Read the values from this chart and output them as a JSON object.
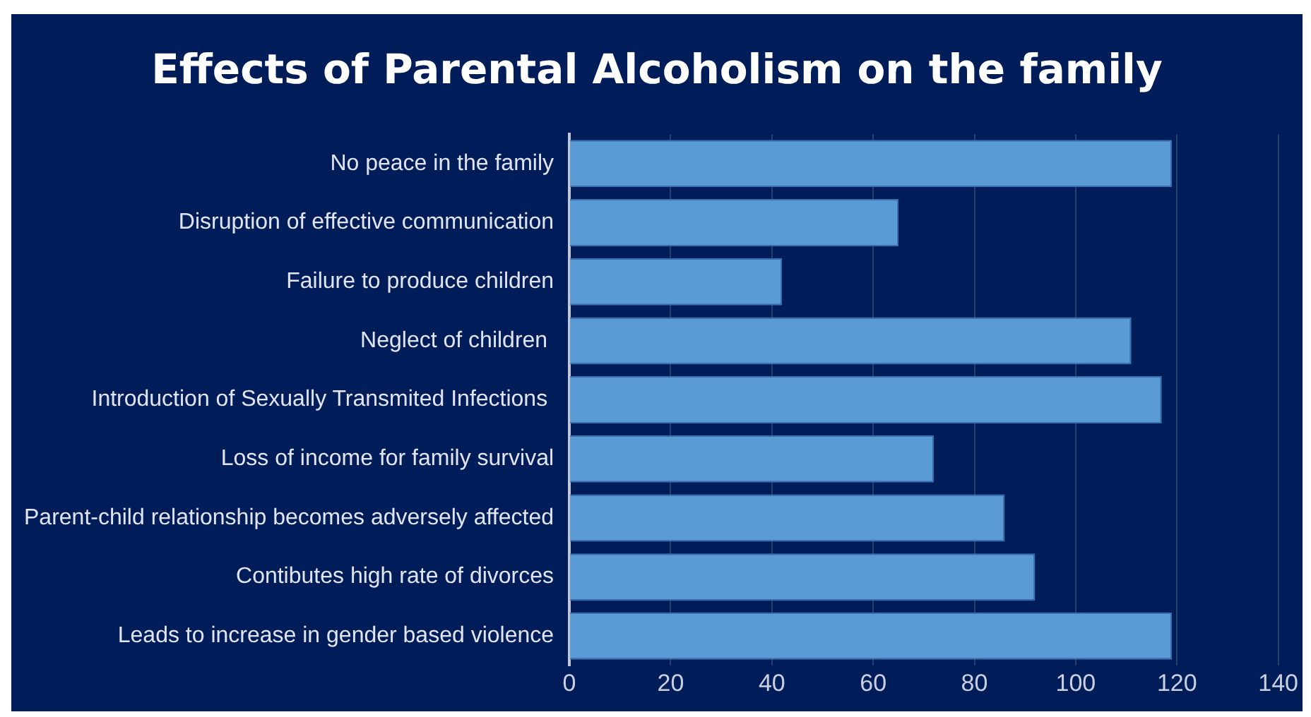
{
  "chart_data": {
    "type": "bar",
    "orientation": "horizontal",
    "title": "Effects of Parental Alcoholism on the family",
    "categories": [
      "No peace in the family",
      "Disruption of effective communication",
      "Failure to produce children",
      "Neglect of children ",
      "Introduction of Sexually Transmited Infections ",
      "Loss of income for family survival",
      "Parent-child relationship becomes adversely affected",
      "Contibutes high rate of divorces",
      "Leads to increase in gender based violence"
    ],
    "values": [
      119,
      65,
      42,
      111,
      117,
      72,
      86,
      92,
      119
    ],
    "color": "#5b9bd5",
    "xlim": [
      0,
      140
    ],
    "xticks": [
      0,
      20,
      40,
      60,
      80,
      100,
      120,
      140
    ],
    "grid": "x"
  }
}
